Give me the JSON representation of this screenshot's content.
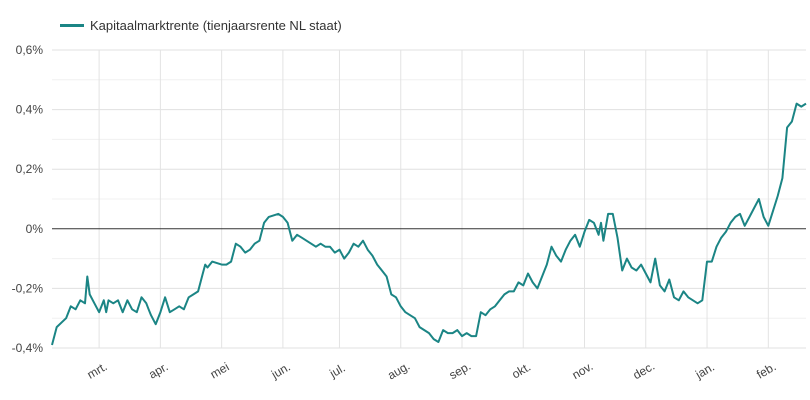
{
  "chart_data": {
    "type": "line",
    "legend": {
      "placement": "top-left"
    },
    "series": [
      {
        "name": "Kapitaalmarktrente (tienjaarsrente NL staat)",
        "color": "#1b8585",
        "points": [
          [
            0,
            -0.39
          ],
          [
            1,
            -0.33
          ],
          [
            3,
            -0.3
          ],
          [
            4,
            -0.26
          ],
          [
            5,
            -0.27
          ],
          [
            6,
            -0.24
          ],
          [
            7,
            -0.25
          ],
          [
            7.5,
            -0.16
          ],
          [
            8,
            -0.22
          ],
          [
            9,
            -0.25
          ],
          [
            10,
            -0.28
          ],
          [
            11,
            -0.24
          ],
          [
            11.5,
            -0.28
          ],
          [
            12,
            -0.24
          ],
          [
            13,
            -0.25
          ],
          [
            14,
            -0.24
          ],
          [
            15,
            -0.28
          ],
          [
            16,
            -0.24
          ],
          [
            17,
            -0.27
          ],
          [
            18,
            -0.28
          ],
          [
            19,
            -0.23
          ],
          [
            20,
            -0.25
          ],
          [
            20.5,
            -0.27
          ],
          [
            21,
            -0.29
          ],
          [
            22,
            -0.32
          ],
          [
            23,
            -0.28
          ],
          [
            24,
            -0.23
          ],
          [
            25,
            -0.28
          ],
          [
            26,
            -0.27
          ],
          [
            27,
            -0.26
          ],
          [
            28,
            -0.27
          ],
          [
            29,
            -0.23
          ],
          [
            30,
            -0.22
          ],
          [
            31,
            -0.21
          ],
          [
            32,
            -0.15
          ],
          [
            32.5,
            -0.12
          ],
          [
            33,
            -0.13
          ],
          [
            34,
            -0.11
          ],
          [
            36,
            -0.12
          ],
          [
            37,
            -0.12
          ],
          [
            38,
            -0.11
          ],
          [
            39,
            -0.05
          ],
          [
            40,
            -0.06
          ],
          [
            41,
            -0.08
          ],
          [
            42,
            -0.07
          ],
          [
            43,
            -0.05
          ],
          [
            44,
            -0.04
          ],
          [
            45,
            0.02
          ],
          [
            46,
            0.04
          ],
          [
            48,
            0.05
          ],
          [
            49,
            0.04
          ],
          [
            50,
            0.02
          ],
          [
            51,
            -0.04
          ],
          [
            52,
            -0.02
          ],
          [
            53,
            -0.03
          ],
          [
            54,
            -0.04
          ],
          [
            55,
            -0.05
          ],
          [
            56,
            -0.06
          ],
          [
            57,
            -0.05
          ],
          [
            58,
            -0.06
          ],
          [
            59,
            -0.06
          ],
          [
            60,
            -0.08
          ],
          [
            61,
            -0.07
          ],
          [
            62,
            -0.1
          ],
          [
            63,
            -0.08
          ],
          [
            64,
            -0.05
          ],
          [
            65,
            -0.06
          ],
          [
            66,
            -0.04
          ],
          [
            67,
            -0.07
          ],
          [
            68,
            -0.09
          ],
          [
            69,
            -0.12
          ],
          [
            70,
            -0.14
          ],
          [
            71,
            -0.16
          ],
          [
            72,
            -0.22
          ],
          [
            73,
            -0.23
          ],
          [
            74,
            -0.26
          ],
          [
            75,
            -0.28
          ],
          [
            76,
            -0.29
          ],
          [
            77,
            -0.3
          ],
          [
            78,
            -0.33
          ],
          [
            79,
            -0.34
          ],
          [
            80,
            -0.35
          ],
          [
            81,
            -0.37
          ],
          [
            82,
            -0.38
          ],
          [
            83,
            -0.34
          ],
          [
            84,
            -0.35
          ],
          [
            85,
            -0.35
          ],
          [
            86,
            -0.34
          ],
          [
            87,
            -0.36
          ],
          [
            88,
            -0.35
          ],
          [
            89,
            -0.36
          ],
          [
            90,
            -0.36
          ],
          [
            91,
            -0.28
          ],
          [
            92,
            -0.29
          ],
          [
            93,
            -0.27
          ],
          [
            94,
            -0.26
          ],
          [
            95,
            -0.24
          ],
          [
            96,
            -0.22
          ],
          [
            97,
            -0.21
          ],
          [
            98,
            -0.21
          ],
          [
            99,
            -0.18
          ],
          [
            100,
            -0.19
          ],
          [
            101,
            -0.15
          ],
          [
            102,
            -0.18
          ],
          [
            103,
            -0.2
          ],
          [
            104,
            -0.16
          ],
          [
            105,
            -0.12
          ],
          [
            106,
            -0.06
          ],
          [
            107,
            -0.09
          ],
          [
            108,
            -0.11
          ],
          [
            109,
            -0.07
          ],
          [
            110,
            -0.04
          ],
          [
            111,
            -0.02
          ],
          [
            112,
            -0.06
          ],
          [
            113,
            -0.01
          ],
          [
            114,
            0.03
          ],
          [
            115,
            0.02
          ],
          [
            116,
            -0.02
          ],
          [
            116.5,
            0.02
          ],
          [
            117,
            -0.04
          ],
          [
            118,
            0.05
          ],
          [
            119,
            0.05
          ],
          [
            120,
            -0.03
          ],
          [
            121,
            -0.14
          ],
          [
            122,
            -0.1
          ],
          [
            123,
            -0.13
          ],
          [
            124,
            -0.14
          ],
          [
            125,
            -0.12
          ],
          [
            126,
            -0.15
          ],
          [
            127,
            -0.18
          ],
          [
            128,
            -0.1
          ],
          [
            129,
            -0.19
          ],
          [
            130,
            -0.21
          ],
          [
            131,
            -0.17
          ],
          [
            132,
            -0.23
          ],
          [
            133,
            -0.24
          ],
          [
            134,
            -0.21
          ],
          [
            135,
            -0.23
          ],
          [
            136,
            -0.24
          ],
          [
            137,
            -0.25
          ],
          [
            138,
            -0.24
          ],
          [
            139,
            -0.11
          ],
          [
            140,
            -0.11
          ],
          [
            141,
            -0.06
          ],
          [
            142,
            -0.03
          ],
          [
            143,
            -0.01
          ],
          [
            144,
            0.02
          ],
          [
            145,
            0.04
          ],
          [
            146,
            0.05
          ],
          [
            147,
            0.01
          ],
          [
            148,
            0.04
          ],
          [
            149,
            0.07
          ],
          [
            150,
            0.1
          ],
          [
            151,
            0.04
          ],
          [
            152,
            0.01
          ],
          [
            153,
            0.06
          ],
          [
            154,
            0.11
          ],
          [
            155,
            0.17
          ],
          [
            156,
            0.34
          ],
          [
            157,
            0.36
          ],
          [
            158,
            0.42
          ],
          [
            159,
            0.41
          ],
          [
            160,
            0.42
          ]
        ]
      }
    ],
    "y_axis": {
      "ylim": [
        -0.4,
        0.6
      ],
      "ticks": [
        {
          "value": 0.6,
          "label": "0,6%"
        },
        {
          "value": 0.4,
          "label": "0,4%"
        },
        {
          "value": 0.2,
          "label": "0,2%"
        },
        {
          "value": 0,
          "label": "0%"
        },
        {
          "value": -0.2,
          "label": "-0,2%"
        },
        {
          "value": -0.4,
          "label": "-0,4%"
        }
      ],
      "minor_gridlines": [
        0.5,
        0.3,
        0.1,
        -0.1,
        -0.3
      ],
      "zero_line": true
    },
    "x_axis": {
      "xlim": [
        0,
        160
      ],
      "ticks": [
        {
          "value": 10,
          "label": "mrt."
        },
        {
          "value": 23,
          "label": "apr."
        },
        {
          "value": 36,
          "label": "mei"
        },
        {
          "value": 49,
          "label": "jun."
        },
        {
          "value": 61,
          "label": "jul."
        },
        {
          "value": 74,
          "label": "aug."
        },
        {
          "value": 87,
          "label": "sep."
        },
        {
          "value": 100,
          "label": "okt."
        },
        {
          "value": 113,
          "label": "nov."
        },
        {
          "value": 126,
          "label": "dec."
        },
        {
          "value": 139,
          "label": "jan."
        },
        {
          "value": 152,
          "label": "feb."
        }
      ],
      "tick_label_rotation": "slanted"
    },
    "grid": true
  }
}
